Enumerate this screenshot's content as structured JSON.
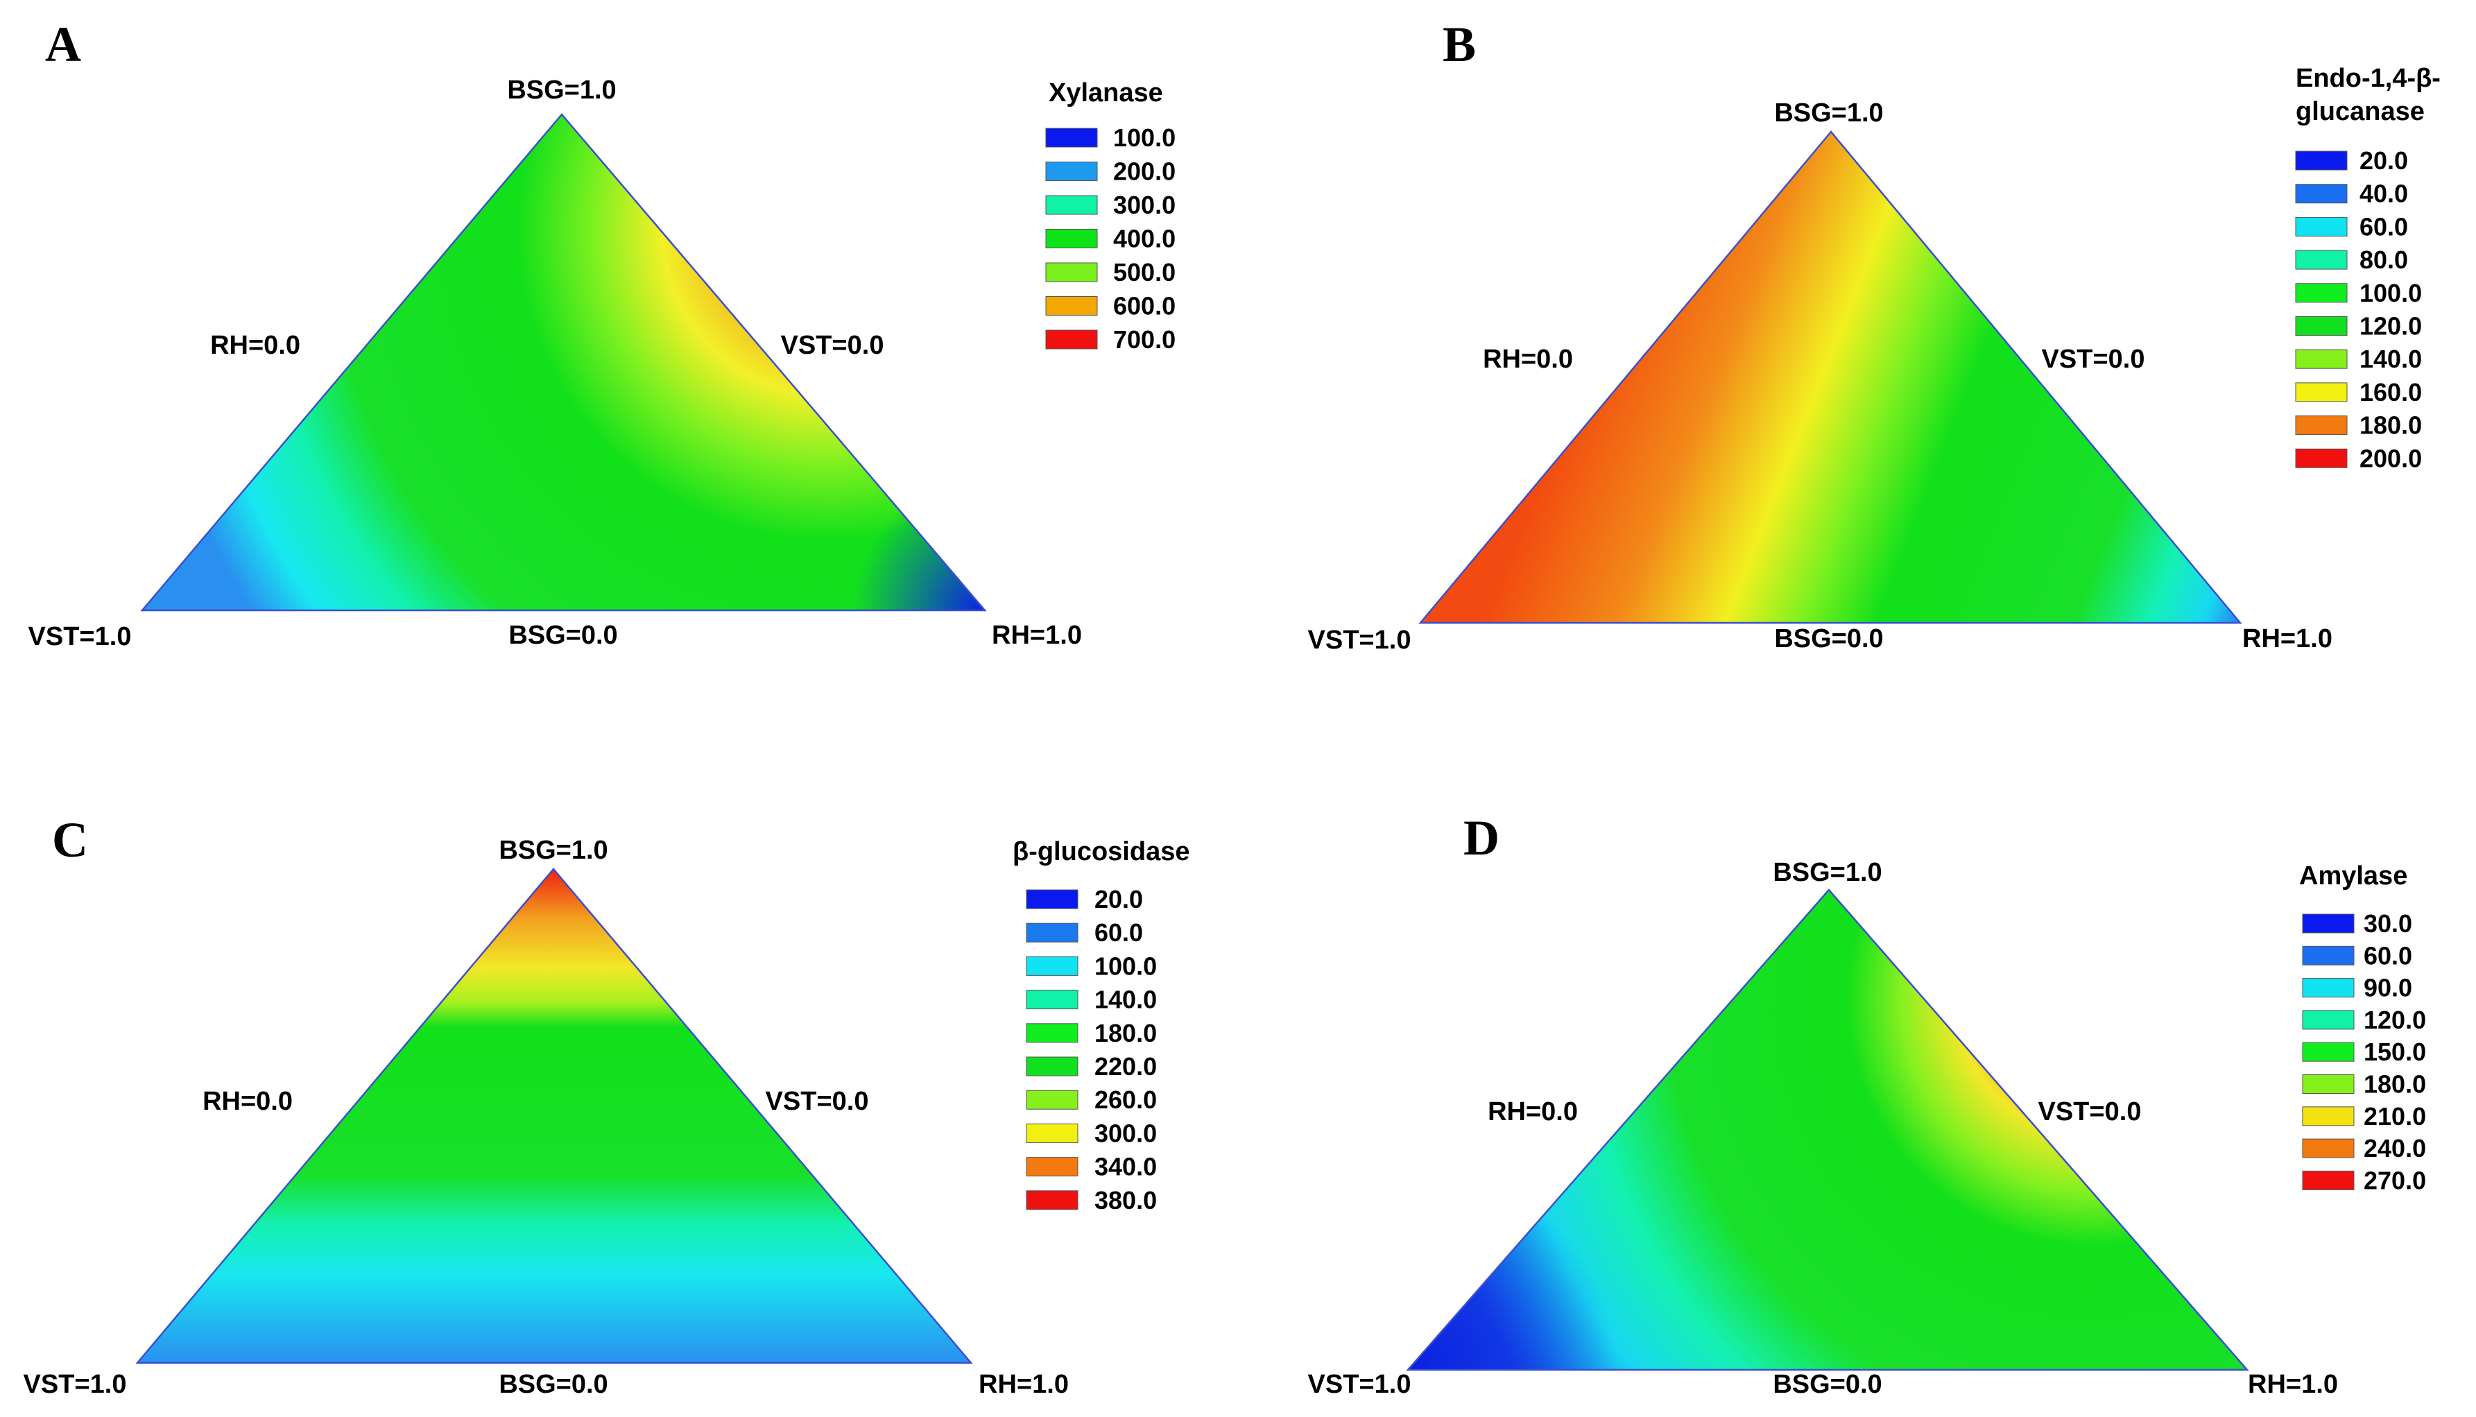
{
  "chart_data": [
    {
      "type": "ternary-contour",
      "panel_label": "A",
      "legend_title": [
        "Xylanase"
      ],
      "legend_entries": [
        {
          "label": "100.0",
          "color": "#0a1aee"
        },
        {
          "label": "200.0",
          "color": "#1e9af0"
        },
        {
          "label": "300.0",
          "color": "#10f2a6"
        },
        {
          "label": "400.0",
          "color": "#10e21a"
        },
        {
          "label": "500.0",
          "color": "#7af01a"
        },
        {
          "label": "600.0",
          "color": "#f2a800"
        },
        {
          "label": "700.0",
          "color": "#f01010"
        }
      ],
      "vertex_labels": {
        "top": "BSG=1.0",
        "left": "VST=1.0",
        "right": "RH=1.0",
        "left_edge": "RH=0.0",
        "right_edge": "VST=0.0",
        "bottom_edge": "BSG=0.0"
      },
      "gradient": {
        "type": "radial-from-top-right-edge",
        "stops": [
          {
            "value": 0.0,
            "color": "#f06010"
          },
          {
            "value": 0.12,
            "color": "#f2a020"
          },
          {
            "value": 0.24,
            "color": "#f2f028"
          },
          {
            "value": 0.34,
            "color": "#7ef020"
          },
          {
            "value": 0.45,
            "color": "#12e01a"
          },
          {
            "value": 0.72,
            "color": "#18e02a"
          },
          {
            "value": 0.82,
            "color": "#12f0b0"
          },
          {
            "value": 0.92,
            "color": "#18e8f0"
          },
          {
            "value": 1.0,
            "color": "#2a90f0"
          }
        ],
        "corner_right_color": "#0a20e8"
      }
    },
    {
      "type": "ternary-contour",
      "panel_label": "B",
      "legend_title": [
        "Endo-1,4-β-",
        "glucanase"
      ],
      "legend_entries": [
        {
          "label": "20.0",
          "color": "#0a1aee"
        },
        {
          "label": "40.0",
          "color": "#1a6ef0"
        },
        {
          "label": "60.0",
          "color": "#10e2f2"
        },
        {
          "label": "80.0",
          "color": "#10f2a8"
        },
        {
          "label": "100.0",
          "color": "#10ee20"
        },
        {
          "label": "120.0",
          "color": "#10e020"
        },
        {
          "label": "140.0",
          "color": "#86f01a"
        },
        {
          "label": "160.0",
          "color": "#f2f010"
        },
        {
          "label": "180.0",
          "color": "#f27a10"
        },
        {
          "label": "200.0",
          "color": "#f01010"
        }
      ],
      "vertex_labels": {
        "top": "BSG=1.0",
        "left": "VST=1.0",
        "right": "RH=1.0",
        "left_edge": "RH=0.0",
        "right_edge": "VST=0.0",
        "bottom_edge": "BSG=0.0"
      },
      "gradient": {
        "type": "diagonal-bands",
        "stops": [
          {
            "value": 0.0,
            "color": "#f24a10"
          },
          {
            "value": 0.18,
            "color": "#f28a18"
          },
          {
            "value": 0.32,
            "color": "#f2f020"
          },
          {
            "value": 0.42,
            "color": "#7ef020"
          },
          {
            "value": 0.52,
            "color": "#12e01a"
          },
          {
            "value": 0.78,
            "color": "#18e02a"
          },
          {
            "value": 0.88,
            "color": "#14f0b8"
          },
          {
            "value": 0.95,
            "color": "#18d8f0"
          },
          {
            "value": 1.0,
            "color": "#2a80f0"
          }
        ]
      }
    },
    {
      "type": "ternary-contour",
      "panel_label": "C",
      "legend_title": [
        "β-glucosidase"
      ],
      "legend_entries": [
        {
          "label": "20.0",
          "color": "#0a1aee"
        },
        {
          "label": "60.0",
          "color": "#1a7af0"
        },
        {
          "label": "100.0",
          "color": "#10e2f2"
        },
        {
          "label": "140.0",
          "color": "#10f2a8"
        },
        {
          "label": "180.0",
          "color": "#10ee20"
        },
        {
          "label": "220.0",
          "color": "#10e020"
        },
        {
          "label": "260.0",
          "color": "#86f01a"
        },
        {
          "label": "300.0",
          "color": "#f2f010"
        },
        {
          "label": "340.0",
          "color": "#f27a10"
        },
        {
          "label": "380.0",
          "color": "#f01010"
        }
      ],
      "vertex_labels": {
        "top": "BSG=1.0",
        "left": "VST=1.0",
        "right": "RH=1.0",
        "left_edge": "RH=0.0",
        "right_edge": "VST=0.0",
        "bottom_edge": "BSG=0.0"
      },
      "gradient": {
        "type": "horizontal-bands",
        "stops": [
          {
            "value": 0.0,
            "color": "#f02010"
          },
          {
            "value": 0.1,
            "color": "#f2a020"
          },
          {
            "value": 0.2,
            "color": "#f2e828"
          },
          {
            "value": 0.27,
            "color": "#a8f020"
          },
          {
            "value": 0.32,
            "color": "#12e01a"
          },
          {
            "value": 0.62,
            "color": "#18e02a"
          },
          {
            "value": 0.72,
            "color": "#14f0b0"
          },
          {
            "value": 0.82,
            "color": "#18e8f0"
          },
          {
            "value": 1.0,
            "color": "#2a90f0"
          }
        ]
      }
    },
    {
      "type": "ternary-contour",
      "panel_label": "D",
      "legend_title": [
        "Amylase"
      ],
      "legend_entries": [
        {
          "label": "30.0",
          "color": "#0a1aee"
        },
        {
          "label": "60.0",
          "color": "#1a6ef0"
        },
        {
          "label": "90.0",
          "color": "#10e2f2"
        },
        {
          "label": "120.0",
          "color": "#10f2a8"
        },
        {
          "label": "150.0",
          "color": "#10ee20"
        },
        {
          "label": "180.0",
          "color": "#86f01a"
        },
        {
          "label": "210.0",
          "color": "#f2e010"
        },
        {
          "label": "240.0",
          "color": "#f27a10"
        },
        {
          "label": "270.0",
          "color": "#f01010"
        }
      ],
      "vertex_labels": {
        "top": "BSG=1.0",
        "left": "VST=1.0",
        "right": "RH=1.0",
        "left_edge": "RH=0.0",
        "right_edge": "VST=0.0",
        "bottom_edge": "BSG=0.0"
      },
      "gradient": {
        "type": "radial-from-top-right-edge",
        "stops": [
          {
            "value": 0.0,
            "color": "#f02010"
          },
          {
            "value": 0.1,
            "color": "#f27a18"
          },
          {
            "value": 0.2,
            "color": "#f2e828"
          },
          {
            "value": 0.28,
            "color": "#86f020"
          },
          {
            "value": 0.36,
            "color": "#12e01a"
          },
          {
            "value": 0.62,
            "color": "#18e02a"
          },
          {
            "value": 0.74,
            "color": "#14f0b0"
          },
          {
            "value": 0.86,
            "color": "#18d8f0"
          },
          {
            "value": 1.0,
            "color": "#1a50e8"
          }
        ],
        "corner_left_color": "#0a20e0"
      }
    }
  ]
}
